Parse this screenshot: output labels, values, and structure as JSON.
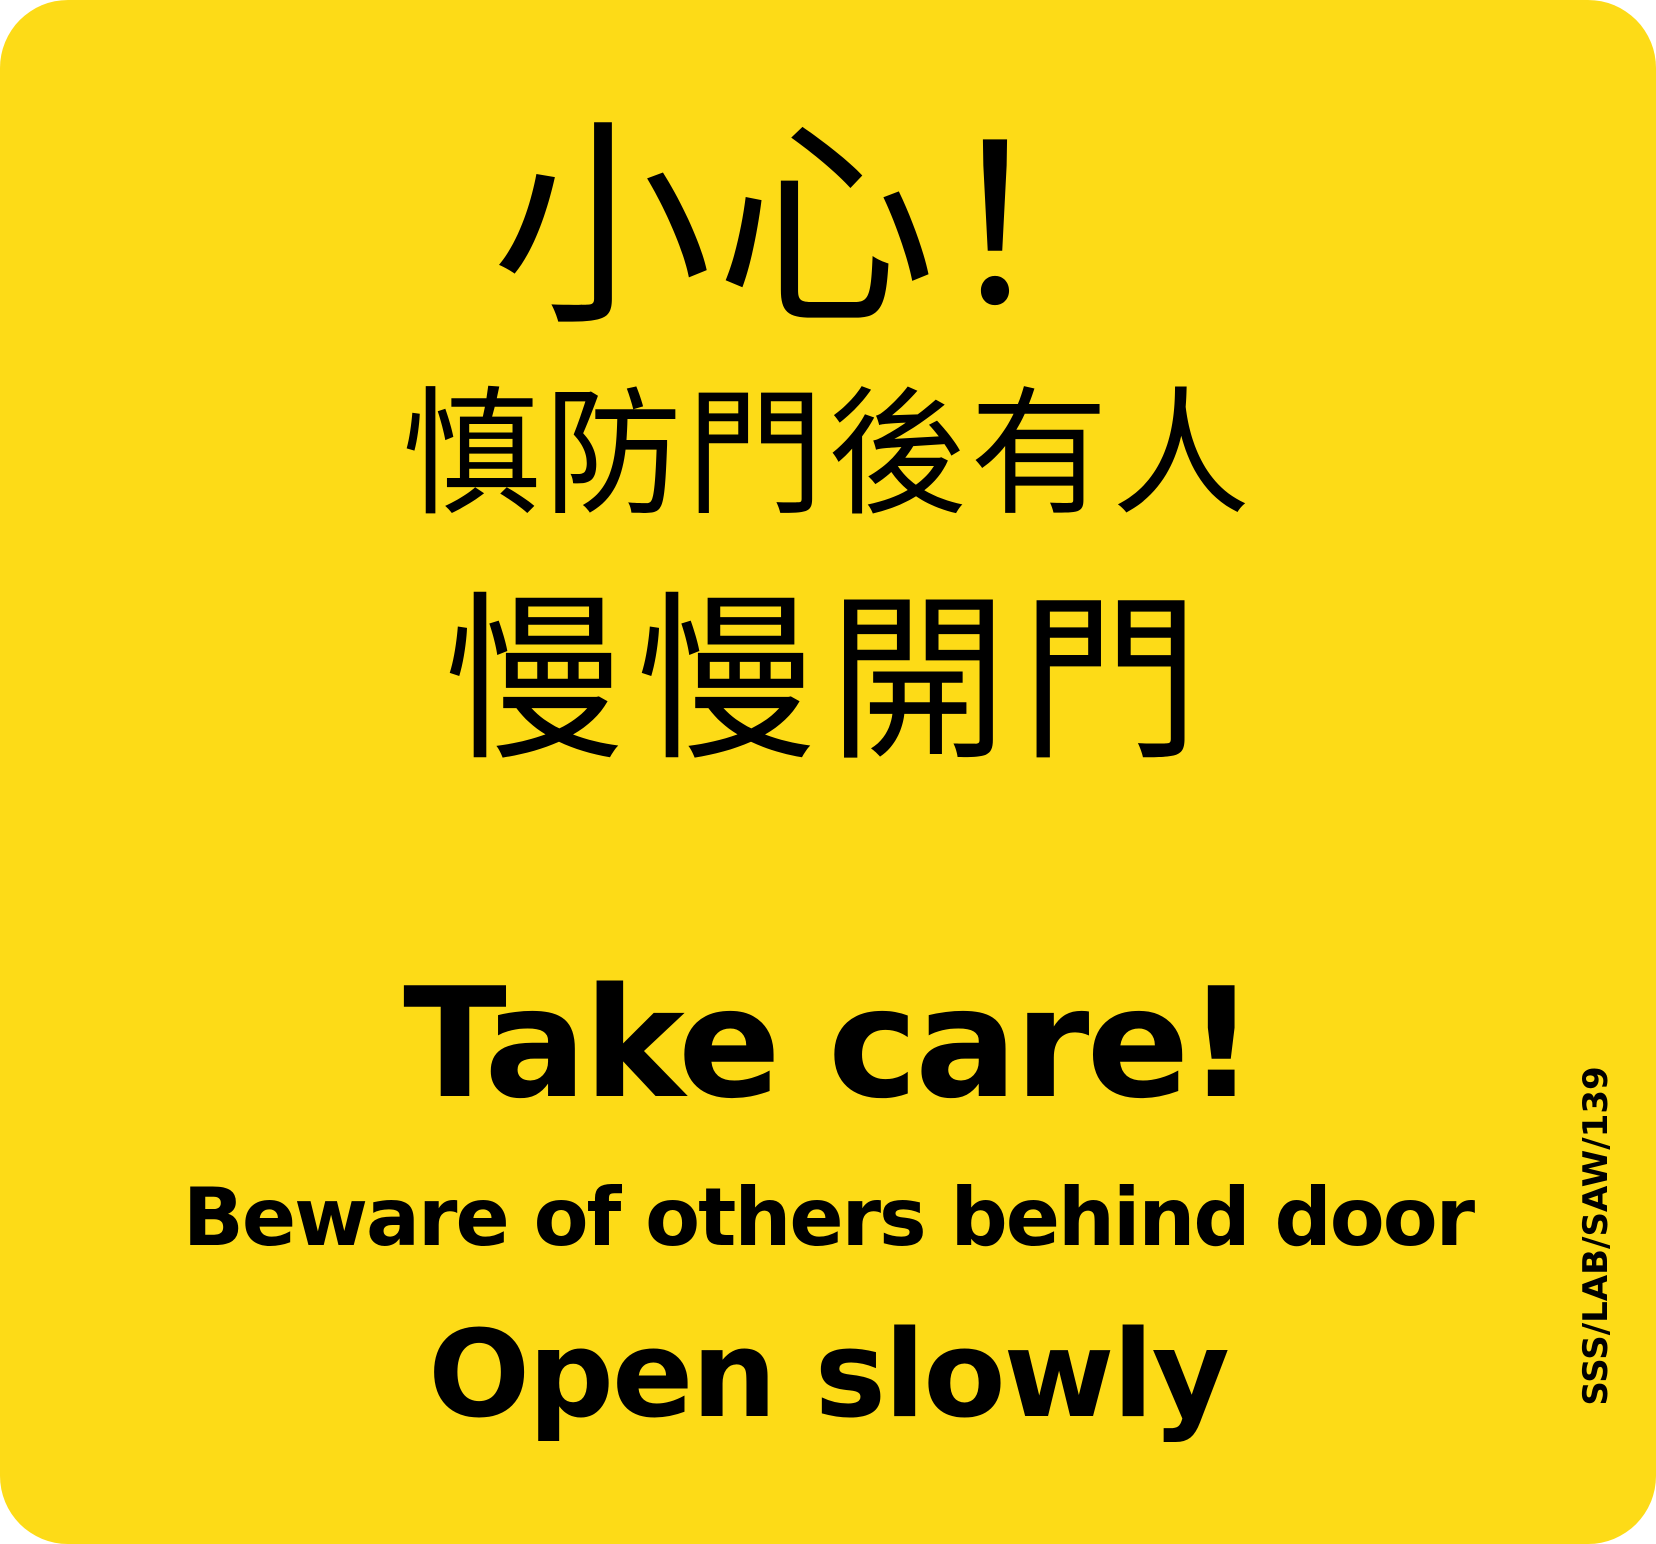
{
  "sign": {
    "background_color": "#FDDB17",
    "text_color": "#000000",
    "zh_title": "小心！",
    "zh_warning": "慎防門後有人",
    "zh_instruction": "慢慢開門",
    "en_title": "Take care!",
    "en_warning": "Beware of others behind door",
    "en_instruction": "Open slowly",
    "ref_code": "SSS/LAB/SAW/139"
  }
}
